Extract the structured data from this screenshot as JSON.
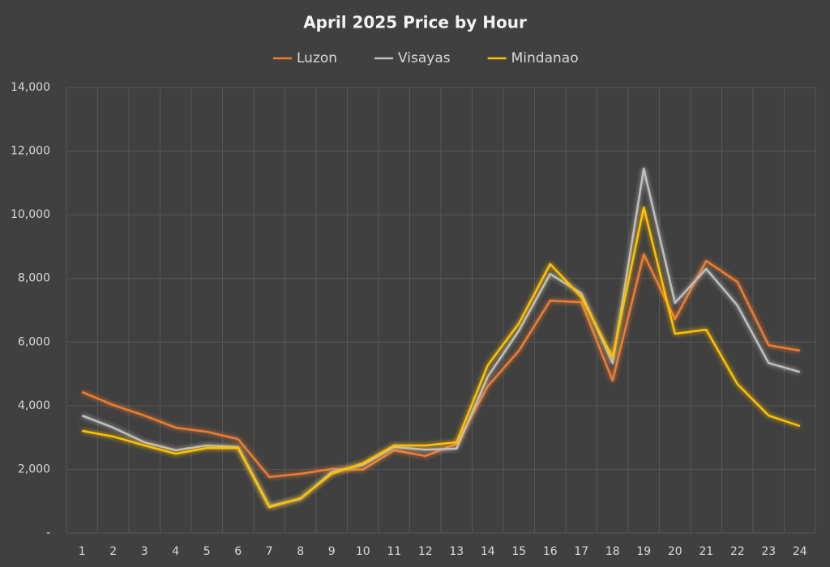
{
  "chart_data": {
    "type": "line",
    "title": "April 2025 Price by Hour",
    "categories": [
      "1",
      "2",
      "3",
      "4",
      "5",
      "6",
      "7",
      "8",
      "9",
      "10",
      "11",
      "12",
      "13",
      "14",
      "15",
      "16",
      "17",
      "18",
      "19",
      "20",
      "21",
      "22",
      "23",
      "24"
    ],
    "series": [
      {
        "name": "Luzon",
        "color": "#ed7d31",
        "values": [
          4430,
          4020,
          3690,
          3310,
          3180,
          2950,
          1760,
          1860,
          2010,
          1990,
          2600,
          2420,
          2800,
          4610,
          5730,
          7300,
          7250,
          4790,
          8760,
          6720,
          8550,
          7890,
          5900,
          5730
        ]
      },
      {
        "name": "Visayas",
        "color": "#bfbfbf",
        "values": [
          3690,
          3310,
          2850,
          2600,
          2750,
          2700,
          840,
          1070,
          1910,
          2140,
          2700,
          2620,
          2650,
          4910,
          6360,
          8140,
          7530,
          5340,
          11450,
          7230,
          8300,
          7150,
          5340,
          5060
        ]
      },
      {
        "name": "Mindanao",
        "color": "#ffc000",
        "values": [
          3210,
          3030,
          2750,
          2490,
          2670,
          2670,
          810,
          1090,
          1860,
          2190,
          2750,
          2750,
          2850,
          5270,
          6590,
          8450,
          7410,
          5520,
          10230,
          6260,
          6390,
          4680,
          3690,
          3360
        ]
      }
    ],
    "ylim": [
      0,
      14000
    ],
    "yticks": [
      {
        "value": 0,
        "label": "-"
      },
      {
        "value": 2000,
        "label": "2,000"
      },
      {
        "value": 4000,
        "label": "4,000"
      },
      {
        "value": 6000,
        "label": "6,000"
      },
      {
        "value": 8000,
        "label": "8,000"
      },
      {
        "value": 10000,
        "label": "10,000"
      },
      {
        "value": 12000,
        "label": "12,000"
      },
      {
        "value": 14000,
        "label": "14,000"
      }
    ],
    "grid": true,
    "legend": "top"
  }
}
